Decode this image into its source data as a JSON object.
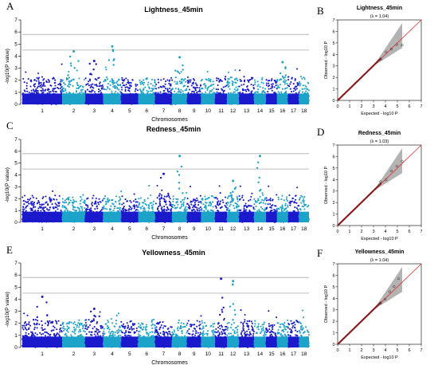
{
  "figure_labels": [
    "A",
    "B",
    "C",
    "D",
    "E",
    "F"
  ],
  "colors": {
    "dark": "#1a1acc",
    "light": "#1ba3c9",
    "threshold": "#aaaaaa",
    "qq_points": "#8a1a1a",
    "qq_line": "#e8312a",
    "qq_band": "#999999"
  },
  "manhattan_common": {
    "ylabel": "-log10(P value)",
    "xlabel": "Chromosomes",
    "chromosomes": [
      "1",
      "2",
      "3",
      "4",
      "5",
      "6",
      "7",
      "8",
      "9",
      "10",
      "11",
      "12",
      "13",
      "14",
      "15",
      "16",
      "17",
      "18"
    ],
    "y_ticks": [
      "0",
      "1",
      "2",
      "3",
      "4",
      "5",
      "6",
      "7"
    ],
    "ylim": [
      0,
      7
    ]
  },
  "qq_common": {
    "xlabel": "Expected - log10 P",
    "ylabel": "Observed - log10 P",
    "ticks": [
      "0",
      "1",
      "2",
      "3",
      "4",
      "5",
      "6",
      "7"
    ],
    "lim": [
      0,
      7
    ]
  },
  "chart_data": [
    {
      "type": "scatter",
      "kind": "manhattan",
      "label": "A",
      "title": "Lightness_45min",
      "thresholds": [
        4.5,
        5.8
      ],
      "peaks": [
        {
          "chr": "2",
          "value": 4.4
        },
        {
          "chr": "3",
          "value": 3.6
        },
        {
          "chr": "4",
          "value": 4.8
        },
        {
          "chr": "8",
          "value": 3.9
        },
        {
          "chr": "16",
          "value": 3.5
        }
      ]
    },
    {
      "type": "scatter",
      "kind": "qq",
      "label": "B",
      "title": "Lightness_45min",
      "lambda": "(λ = 1.04)",
      "max_point": [
        5.4,
        4.8
      ]
    },
    {
      "type": "scatter",
      "kind": "manhattan",
      "label": "C",
      "title": "Redness_45min",
      "thresholds": [
        4.5,
        5.8
      ],
      "peaks": [
        {
          "chr": "7",
          "value": 4.1
        },
        {
          "chr": "8",
          "value": 5.6
        },
        {
          "chr": "12",
          "value": 3.5
        },
        {
          "chr": "14",
          "value": 5.6
        }
      ]
    },
    {
      "type": "scatter",
      "kind": "qq",
      "label": "D",
      "title": "Redness_45min",
      "lambda": "(λ = 1.03)",
      "max_point": [
        5.4,
        5.6
      ]
    },
    {
      "type": "scatter",
      "kind": "manhattan",
      "label": "E",
      "title": "Yellowness_45min",
      "thresholds": [
        4.5,
        5.8
      ],
      "peaks": [
        {
          "chr": "1",
          "value": 4.2
        },
        {
          "chr": "11",
          "value": 5.7
        },
        {
          "chr": "12",
          "value": 5.5
        },
        {
          "chr": "3",
          "value": 3.2
        }
      ]
    },
    {
      "type": "scatter",
      "kind": "qq",
      "label": "F",
      "title": "Yellowness_45min",
      "lambda": "(λ = 1.04)",
      "max_point": [
        5.1,
        5.7
      ]
    }
  ]
}
